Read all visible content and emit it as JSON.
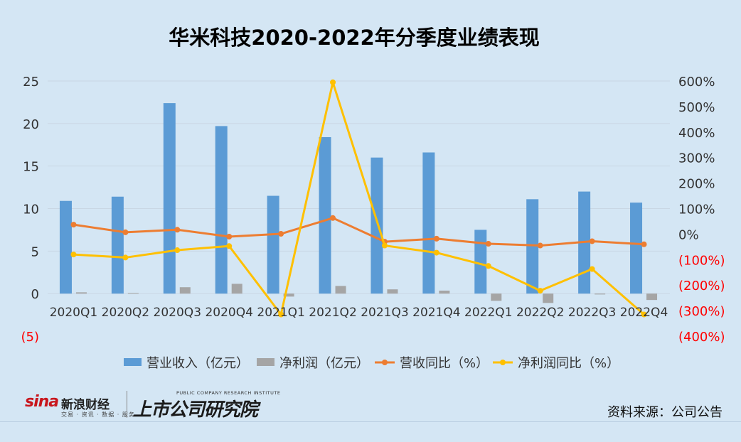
{
  "chart_data": {
    "type": "bar+line",
    "title": "华米科技2020-2022年分季度业绩表现",
    "categories": [
      "2020Q1",
      "2020Q2",
      "2020Q3",
      "2020Q4",
      "2021Q1",
      "2021Q2",
      "2021Q3",
      "2021Q4",
      "2022Q1",
      "2022Q2",
      "2022Q3",
      "2022Q4"
    ],
    "y_left": {
      "min": -5,
      "max": 25,
      "ticks": [
        -5,
        0,
        5,
        10,
        15,
        20,
        25
      ],
      "tick_labels": [
        "(5)",
        "0",
        "5",
        "10",
        "15",
        "20",
        "25"
      ]
    },
    "y_right": {
      "min": -400,
      "max": 600,
      "ticks": [
        -400,
        -300,
        -200,
        -100,
        0,
        100,
        200,
        300,
        400,
        500,
        600
      ],
      "tick_labels": [
        "(400%)",
        "(300%)",
        "(200%)",
        "(100%)",
        "0%",
        "100%",
        "200%",
        "300%",
        "400%",
        "500%",
        "600%"
      ]
    },
    "series": [
      {
        "name": "营业收入（亿元）",
        "kind": "bar",
        "axis": "left",
        "color": "#5b9bd5",
        "values": [
          10.9,
          11.4,
          22.4,
          19.7,
          11.5,
          18.4,
          16.0,
          16.6,
          7.5,
          11.1,
          12.0,
          10.7
        ]
      },
      {
        "name": "净利润（亿元）",
        "kind": "bar",
        "axis": "left",
        "color": "#a5a5a5",
        "values": [
          0.15,
          0.08,
          0.75,
          1.15,
          -0.35,
          0.9,
          0.5,
          0.35,
          -0.85,
          -1.1,
          -0.1,
          -0.75
        ]
      },
      {
        "name": "营收同比（%）",
        "kind": "line",
        "axis": "right",
        "color": "#ed7d31",
        "values": [
          37,
          7,
          17,
          -10,
          1,
          63,
          -30,
          -18,
          -38,
          -45,
          -28,
          -40
        ]
      },
      {
        "name": "净利润同比（%）",
        "kind": "line",
        "axis": "right",
        "color": "#ffc000",
        "values": [
          -80,
          -92,
          -63,
          -47,
          -315,
          595,
          -45,
          -73,
          -125,
          -222,
          -137,
          -315
        ]
      }
    ],
    "legend_position": "bottom",
    "grid": true
  },
  "colors": {
    "negative_tick": "#ff0000",
    "gridline": "#c9d7e4"
  },
  "footer": {
    "brand_sina": "sina",
    "brand_sina_cn": "新浪财经",
    "brand_sina_sub": "交易 · 资讯 · 数据 · 服务",
    "brand_inst": "上市公司研究院",
    "brand_inst_en": "PUBLIC COMPANY RESEARCH INSTITUTE",
    "source": "资料来源：公司公告"
  }
}
